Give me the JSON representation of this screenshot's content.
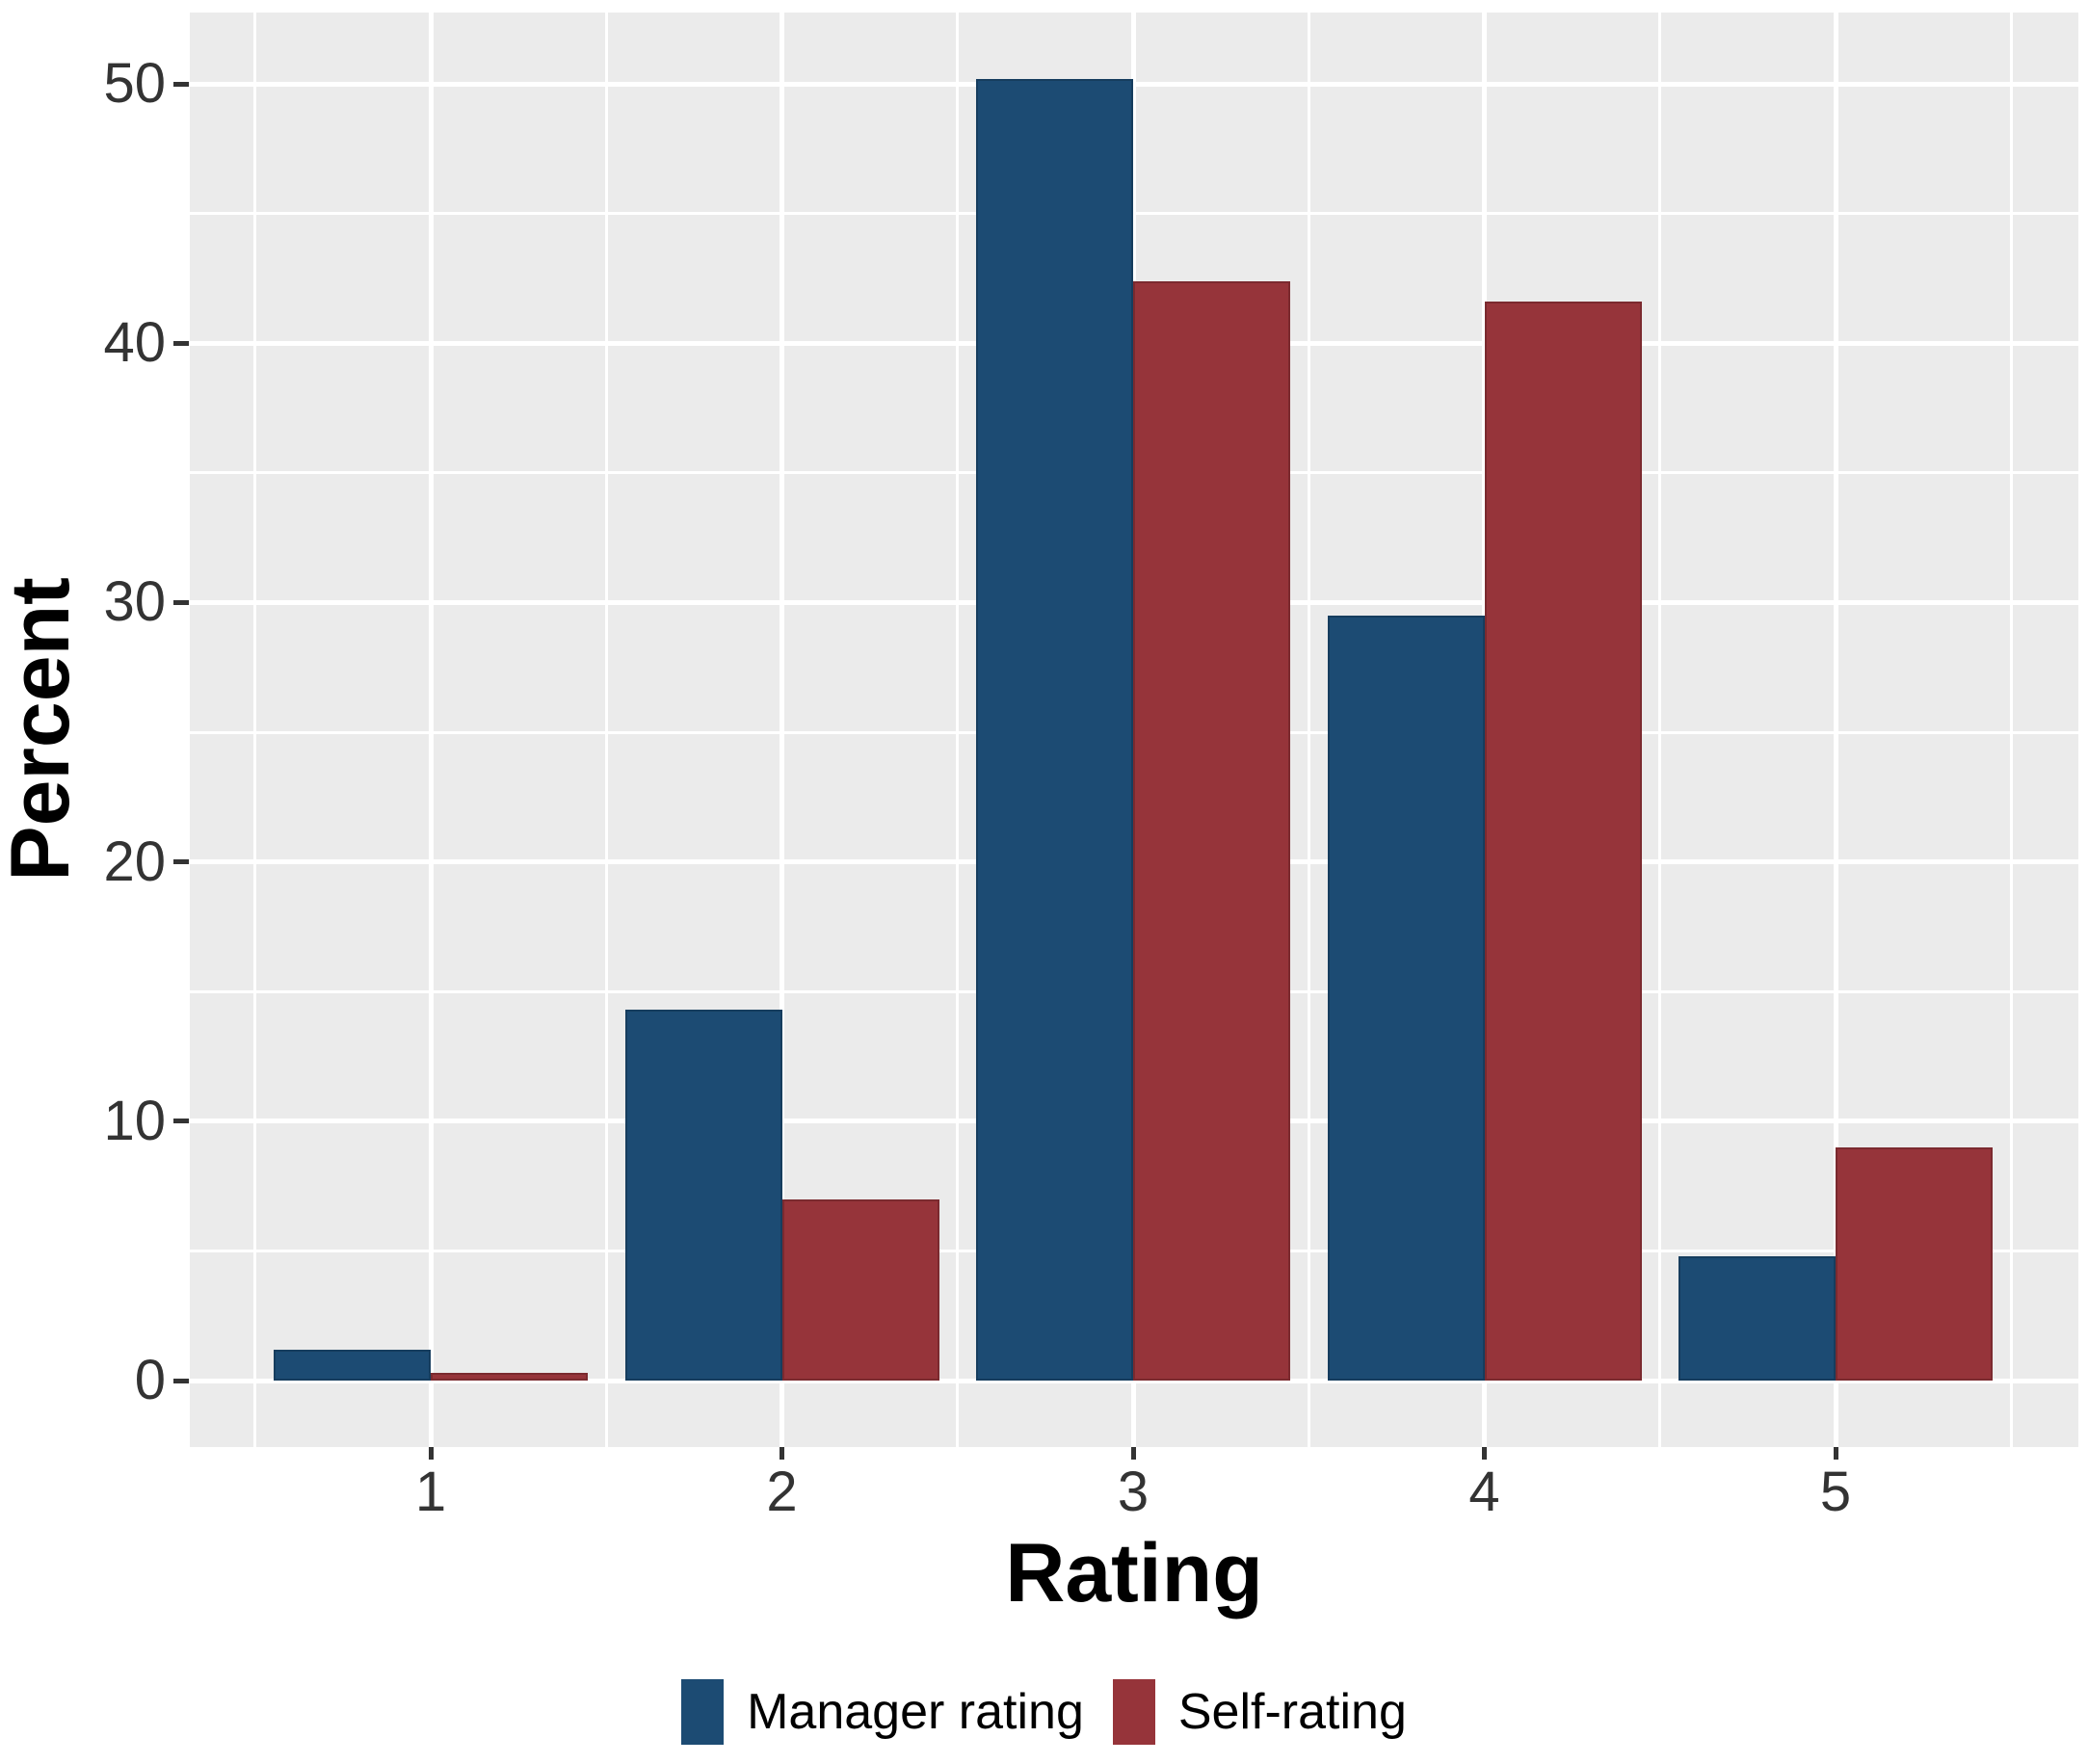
{
  "chart_data": {
    "type": "bar",
    "title": "",
    "categories": [
      "1",
      "2",
      "3",
      "4",
      "5"
    ],
    "series": [
      {
        "name": "Manager rating",
        "color": "#1C4B73",
        "values": [
          1.2,
          14.3,
          50.2,
          29.5,
          4.8
        ]
      },
      {
        "name": "Self-rating",
        "color": "#96343A",
        "values": [
          0.3,
          7.0,
          42.4,
          41.6,
          9.0
        ]
      }
    ],
    "xlabel": "Rating",
    "ylabel": "Percent",
    "ylim": [
      0,
      52.8
    ],
    "yticks": [
      0,
      10,
      20,
      30,
      40,
      50
    ],
    "yticks_minor": [
      5,
      15,
      25,
      35,
      45
    ],
    "grid": "on",
    "legend_position": "bottom",
    "panel_bg": "#EBEBEB",
    "grid_color": "#FFFFFF",
    "tick_color": "#333333",
    "tick_label_color": "#333333",
    "axis_title_color": "#000000"
  }
}
